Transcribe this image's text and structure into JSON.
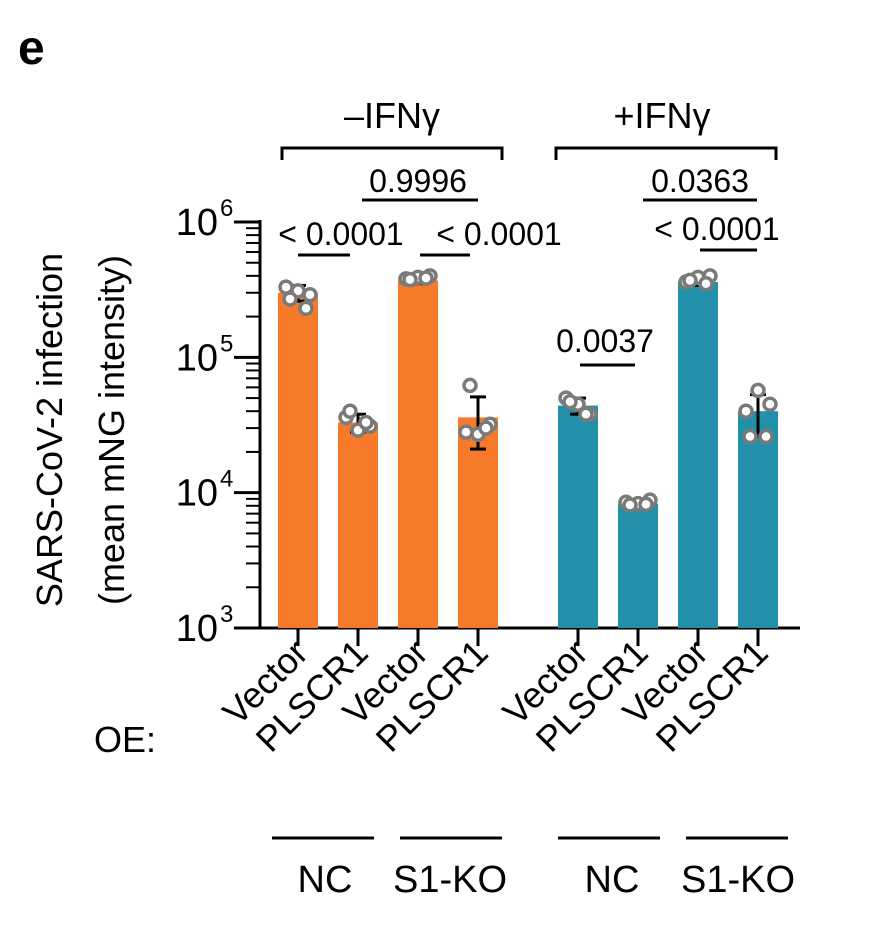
{
  "panel_label": "e",
  "colors": {
    "no_ifn": "#F7792A",
    "ifn": "#2190A8",
    "axis": "#000000",
    "point_fill": "#ffffff",
    "point_stroke": "#7a7a7a"
  },
  "group_headers": [
    "–IFNγ",
    "+IFNγ"
  ],
  "oe_label": "OE:",
  "chart_data": {
    "type": "bar",
    "title": "",
    "ylabel_line1": "SARS-CoV-2 infection",
    "ylabel_line2": "(mean mNG intensity)",
    "yscale": "log",
    "ylim": [
      1000,
      1000000
    ],
    "yticks": [
      {
        "base": "10",
        "exp": "3"
      },
      {
        "base": "10",
        "exp": "4"
      },
      {
        "base": "10",
        "exp": "5"
      },
      {
        "base": "10",
        "exp": "6"
      }
    ],
    "categories": [
      "Vector",
      "PLSCR1",
      "Vector",
      "PLSCR1",
      "Vector",
      "PLSCR1",
      "Vector",
      "PLSCR1"
    ],
    "condition": [
      "NC",
      "NC",
      "S1-KO",
      "S1-KO",
      "NC",
      "NC",
      "S1-KO",
      "S1-KO"
    ],
    "treatment": [
      "–IFNγ",
      "–IFNγ",
      "–IFNγ",
      "–IFNγ",
      "+IFNγ",
      "+IFNγ",
      "+IFNγ",
      "+IFNγ"
    ],
    "bars": [
      {
        "value": 300000,
        "err": [
          260000,
          340000
        ],
        "points": [
          330000,
          290000,
          310000,
          270000,
          230000
        ]
      },
      {
        "value": 33000,
        "err": [
          28000,
          38000
        ],
        "points": [
          36000,
          31000,
          29000,
          40000,
          33000
        ]
      },
      {
        "value": 370000,
        "err": [
          350000,
          390000
        ],
        "points": [
          380000,
          400000,
          390000,
          375000,
          385000
        ]
      },
      {
        "value": 36000,
        "err": [
          21000,
          51000
        ],
        "points": [
          28000,
          32000,
          27000,
          62000,
          30000
        ]
      },
      {
        "value": 44000,
        "err": [
          38000,
          50000
        ],
        "points": [
          50000,
          38000,
          45000,
          47000,
          38000
        ]
      },
      {
        "value": 8300,
        "err": [
          8000,
          8700
        ],
        "points": [
          8500,
          8800,
          8300,
          8100,
          8200
        ]
      },
      {
        "value": 360000,
        "err": [
          340000,
          380000
        ],
        "points": [
          360000,
          400000,
          390000,
          370000,
          350000
        ]
      },
      {
        "value": 40000,
        "err": [
          26000,
          53000
        ],
        "points": [
          40000,
          45000,
          57000,
          26000,
          26000
        ]
      }
    ],
    "comparisons": [
      {
        "label": "< 0.0001",
        "from": 0,
        "to": 1
      },
      {
        "label": "< 0.0001",
        "from": 2,
        "to": 3
      },
      {
        "label": "0.9996",
        "from": 1,
        "to": 3
      },
      {
        "label": "0.0037",
        "from": 4,
        "to": 5
      },
      {
        "label": "< 0.0001",
        "from": 6,
        "to": 7
      },
      {
        "label": "0.0363",
        "from": 5,
        "to": 7
      }
    ]
  }
}
